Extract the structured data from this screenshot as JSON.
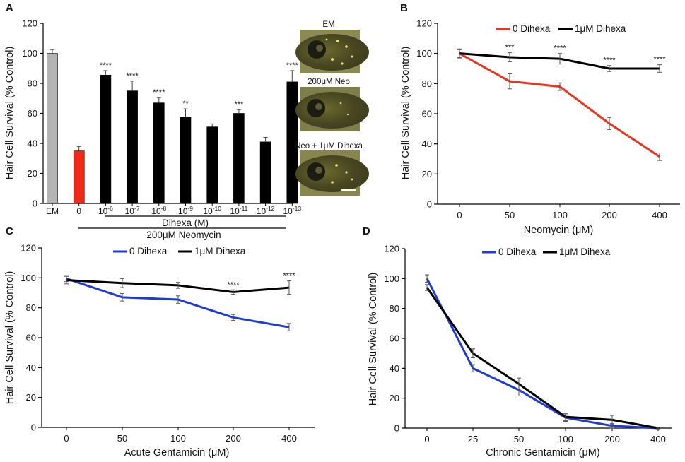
{
  "chart_data": [
    {
      "panel": "A",
      "type": "bar",
      "ylabel": "Hair Cell Survival (% Control)",
      "ylim": [
        0,
        120
      ],
      "yticks": [
        0,
        20,
        40,
        60,
        80,
        100,
        120
      ],
      "categories": [
        {
          "base": "EM",
          "exp": ""
        },
        {
          "base": "0",
          "exp": ""
        },
        {
          "base": "10",
          "exp": "-6"
        },
        {
          "base": "10",
          "exp": "-7"
        },
        {
          "base": "10",
          "exp": "-8"
        },
        {
          "base": "10",
          "exp": "-9"
        },
        {
          "base": "10",
          "exp": "-10"
        },
        {
          "base": "10",
          "exp": "-11"
        },
        {
          "base": "10",
          "exp": "-12"
        },
        {
          "base": "10",
          "exp": "-13"
        }
      ],
      "values": [
        100,
        35,
        85.5,
        75,
        67,
        57.5,
        51,
        60,
        41,
        81
      ],
      "errors": [
        2.5,
        3,
        3,
        6.5,
        3.5,
        5.5,
        2,
        2.5,
        3,
        7.5
      ],
      "colors": [
        "#b4b4b4",
        "#ee2a16",
        "#000000",
        "#000000",
        "#000000",
        "#000000",
        "#000000",
        "#000000",
        "#000000",
        "#000000"
      ],
      "significance": [
        "",
        "",
        "****",
        "****",
        "****",
        "**",
        "",
        "***",
        "",
        "****"
      ],
      "group_labels": {
        "dihexa": "Dihexa (M)",
        "neomycin": "200μM Neomycin"
      },
      "image_labels": [
        "EM",
        "200μM Neo",
        "Neo + 1μM Dihexa"
      ]
    },
    {
      "panel": "B",
      "type": "line",
      "xlabel": "Neomycin (μM)",
      "ylabel": "Hair Cell Survival (% Control)",
      "ylim": [
        0,
        120
      ],
      "yticks": [
        0,
        20,
        40,
        60,
        80,
        100,
        120
      ],
      "categories": [
        "0",
        "50",
        "100",
        "200",
        "400"
      ],
      "series": [
        {
          "name": "0 Dihexa",
          "color": "#e8361e",
          "values": [
            100,
            81.5,
            78,
            53.5,
            31.5
          ],
          "errors": [
            3,
            5,
            2.5,
            4,
            2.5
          ]
        },
        {
          "name": "1μM Dihexa",
          "color": "#000000",
          "values": [
            100,
            97.5,
            96.5,
            90,
            90
          ],
          "errors": [
            2.5,
            3,
            3.5,
            2,
            2.5
          ]
        }
      ],
      "significance": [
        "",
        "***",
        "****",
        "****",
        "****"
      ]
    },
    {
      "panel": "C",
      "type": "line",
      "xlabel": "Acute Gentamicin (μM)",
      "ylabel": "Hair Cell Survival (% Control)",
      "ylim": [
        0,
        120
      ],
      "yticks": [
        0,
        20,
        40,
        60,
        80,
        100,
        120
      ],
      "categories": [
        "0",
        "50",
        "100",
        "200",
        "400"
      ],
      "series": [
        {
          "name": "0 Dihexa",
          "color": "#1f3bd6",
          "values": [
            99.5,
            87,
            85.5,
            73.5,
            67
          ],
          "errors": [
            2,
            2.5,
            2.5,
            2,
            2.5
          ]
        },
        {
          "name": "1μM Dihexa",
          "color": "#000000",
          "values": [
            98.5,
            96.5,
            95,
            90.5,
            93.5
          ],
          "errors": [
            2.5,
            3,
            2,
            1.5,
            4.5
          ]
        }
      ],
      "significance": [
        "",
        "",
        "",
        "****",
        "****"
      ]
    },
    {
      "panel": "D",
      "type": "line",
      "xlabel": "Chronic Gentamicin (μM)",
      "ylabel": "Hair Cell Survival (% Control)",
      "ylim": [
        0,
        120
      ],
      "yticks": [
        0,
        20,
        40,
        60,
        80,
        100,
        120
      ],
      "categories": [
        "0",
        "25",
        "50",
        "100",
        "200",
        "400"
      ],
      "series": [
        {
          "name": "0 Dihexa",
          "color": "#1f3bd6",
          "values": [
            100,
            40,
            25.5,
            7,
            1.5,
            0
          ],
          "errors": [
            2.5,
            2.5,
            4,
            2.5,
            1.5,
            0.5
          ]
        },
        {
          "name": "1μM Dihexa",
          "color": "#000000",
          "values": [
            94,
            50,
            29.5,
            7.5,
            5.5,
            0
          ],
          "errors": [
            2,
            3,
            4,
            2.5,
            3,
            0.5
          ]
        }
      ],
      "significance": [
        "",
        "",
        "",
        "",
        "",
        ""
      ]
    }
  ]
}
